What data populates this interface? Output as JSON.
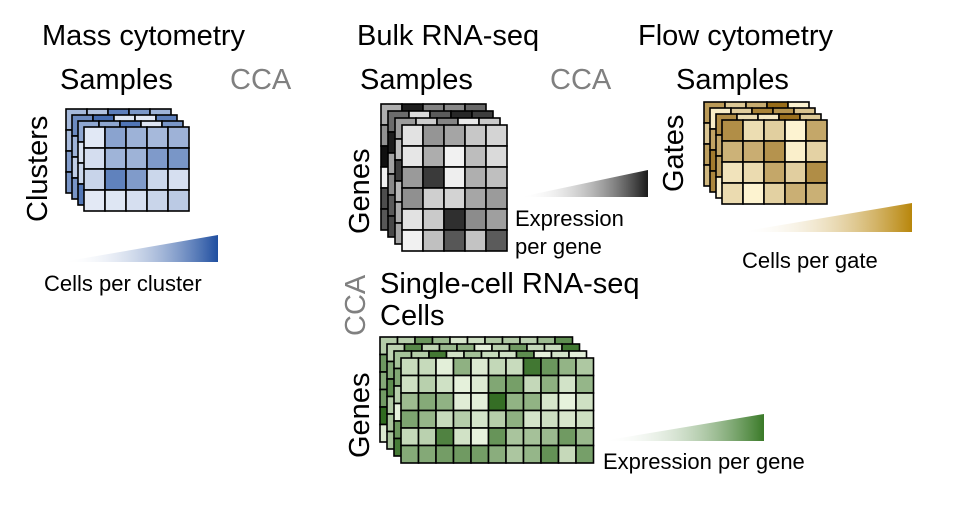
{
  "panels": {
    "mass": {
      "title": "Mass cytometry",
      "col_label": "Samples",
      "row_label": "Clusters",
      "cca_label": "CCA",
      "legend": "Cells per cluster",
      "colors": [
        "#1f4ea0",
        "#e6ecf7"
      ]
    },
    "bulk": {
      "title": "Bulk RNA-seq",
      "col_label": "Samples",
      "row_label": "Genes",
      "cca_label": "CCA",
      "legend_line1": "Expression",
      "legend_line2": "per gene",
      "colors": [
        "#000000",
        "#f2f2f2"
      ]
    },
    "flow": {
      "title": "Flow cytometry",
      "col_label": "Samples",
      "row_label": "Gates",
      "legend": "Cells per gate",
      "colors": [
        "#8a5a00",
        "#fff6d5"
      ]
    },
    "sc": {
      "title": "Single-cell RNA-seq",
      "col_label": "Cells",
      "row_label": "Genes",
      "cca_label": "CCA",
      "legend": "Expression per gene",
      "colors": [
        "#2f6a1f",
        "#e8f3de"
      ]
    }
  }
}
